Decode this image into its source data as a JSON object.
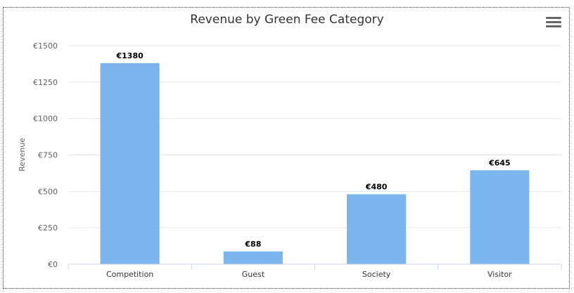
{
  "chart_data": {
    "type": "bar",
    "title": "Revenue by Green Fee Category",
    "ylabel": "Revenue",
    "xlabel": "",
    "currency_symbol": "€",
    "categories": [
      "Competition",
      "Guest",
      "Society",
      "Visitor"
    ],
    "values": [
      1380,
      88,
      480,
      645
    ],
    "data_labels": [
      "€1380",
      "€88",
      "€480",
      "€645"
    ],
    "yticks": [
      "€0",
      "€250",
      "€500",
      "€750",
      "€1000",
      "€1250",
      "€1500"
    ],
    "ylim": [
      0,
      1500
    ],
    "grid": true,
    "legend": "none",
    "bar_color": "#7cb5ec"
  },
  "menu": {
    "icon": "hamburger-menu-icon"
  }
}
